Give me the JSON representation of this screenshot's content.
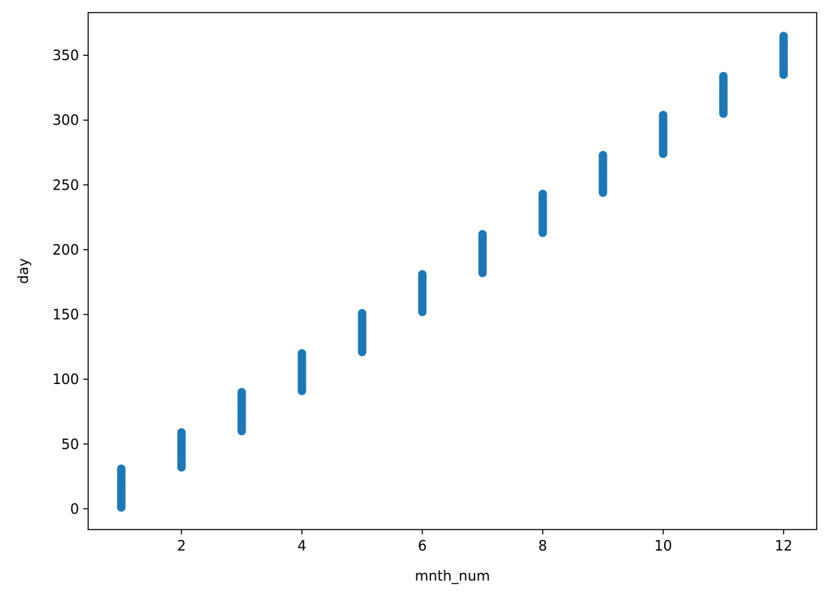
{
  "chart_data": {
    "type": "scatter",
    "title": "",
    "xlabel": "mnth_num",
    "ylabel": "day",
    "xlim": [
      0.45,
      12.55
    ],
    "ylim": [
      -16,
      383
    ],
    "xticks": [
      2,
      4,
      6,
      8,
      10,
      12
    ],
    "xtick_labels": [
      "2",
      "4",
      "6",
      "8",
      "10",
      "12"
    ],
    "yticks": [
      0,
      50,
      100,
      150,
      200,
      250,
      300,
      350
    ],
    "ytick_labels": [
      "0",
      "50",
      "100",
      "150",
      "200",
      "250",
      "300",
      "350"
    ],
    "grid": false,
    "legend": "none",
    "point_color": "#1f77b4",
    "series": [
      {
        "groups": [
          {
            "x": 1,
            "y_min": 1,
            "y_max": 31
          },
          {
            "x": 2,
            "y_min": 32,
            "y_max": 59
          },
          {
            "x": 3,
            "y_min": 60,
            "y_max": 90
          },
          {
            "x": 4,
            "y_min": 91,
            "y_max": 120
          },
          {
            "x": 5,
            "y_min": 121,
            "y_max": 151
          },
          {
            "x": 6,
            "y_min": 152,
            "y_max": 181
          },
          {
            "x": 7,
            "y_min": 182,
            "y_max": 212
          },
          {
            "x": 8,
            "y_min": 213,
            "y_max": 243
          },
          {
            "x": 9,
            "y_min": 244,
            "y_max": 273
          },
          {
            "x": 10,
            "y_min": 274,
            "y_max": 304
          },
          {
            "x": 11,
            "y_min": 305,
            "y_max": 334
          },
          {
            "x": 12,
            "y_min": 335,
            "y_max": 365
          }
        ]
      }
    ]
  }
}
